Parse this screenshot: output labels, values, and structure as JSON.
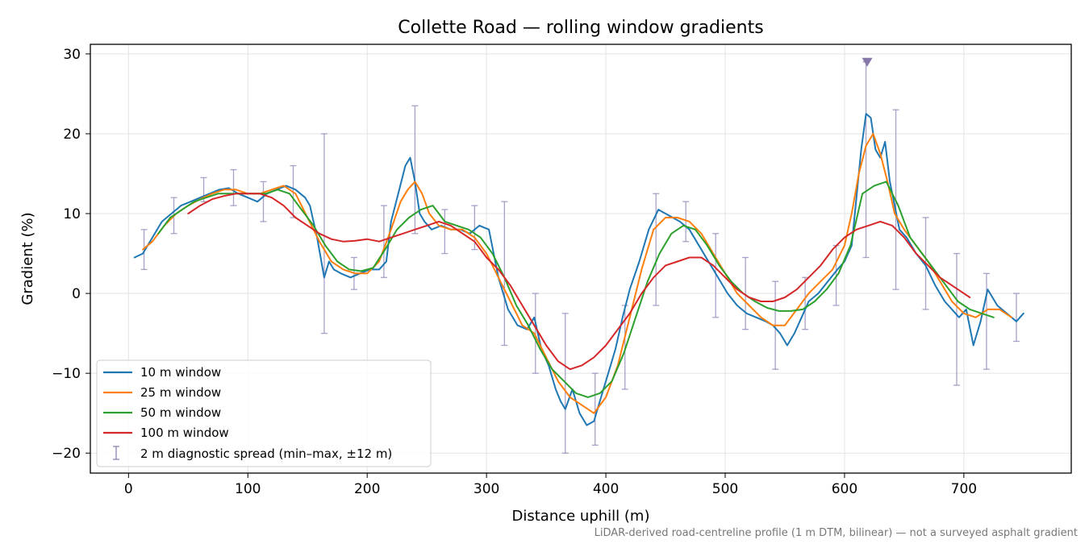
{
  "chart_data": {
    "type": "line",
    "title": "Collette Road — rolling window gradients",
    "xlabel": "Distance uphill (m)",
    "ylabel": "Gradient (%)",
    "xlim": [
      -32,
      790
    ],
    "ylim": [
      -22.5,
      31.2
    ],
    "xticks": [
      0,
      100,
      200,
      300,
      400,
      500,
      600,
      700
    ],
    "yticks": [
      -20,
      -10,
      0,
      10,
      20,
      30
    ],
    "grid": true,
    "legend_position": "lower-left",
    "footnote": "LiDAR-derived road-centreline profile (1 m DTM, bilinear) — not a surveyed asphalt gradient",
    "colors": {
      "10 m window": "#1f77b4",
      "25 m window": "#ff7f0e",
      "50 m window": "#2ca02c",
      "100 m window": "#d62728",
      "spread": "#9a90bd",
      "marker": "#8878a8"
    },
    "series": [
      {
        "name": "10 m window",
        "x": [
          5,
          12,
          20,
          28,
          36,
          44,
          52,
          60,
          68,
          76,
          84,
          92,
          100,
          108,
          116,
          124,
          132,
          140,
          148,
          152,
          158,
          164,
          168,
          172,
          178,
          186,
          194,
          202,
          210,
          216,
          220,
          226,
          232,
          236,
          240,
          244,
          248,
          254,
          262,
          270,
          278,
          286,
          294,
          302,
          310,
          318,
          326,
          334,
          340,
          346,
          352,
          358,
          362,
          366,
          372,
          378,
          384,
          390,
          396,
          402,
          408,
          414,
          420,
          428,
          436,
          444,
          450,
          456,
          462,
          470,
          478,
          486,
          494,
          502,
          510,
          518,
          526,
          534,
          540,
          546,
          552,
          558,
          564,
          570,
          578,
          586,
          594,
          600,
          606,
          610,
          614,
          618,
          622,
          626,
          630,
          634,
          638,
          642,
          646,
          652,
          660,
          668,
          676,
          684,
          690,
          696,
          702,
          708,
          714,
          720,
          728,
          736,
          744,
          750
        ],
        "y": [
          4.5,
          5.0,
          7.0,
          9.0,
          10.0,
          11.0,
          11.5,
          12.0,
          12.5,
          13.0,
          13.2,
          12.5,
          12.0,
          11.5,
          12.5,
          13.0,
          13.5,
          13.0,
          12.0,
          11.0,
          7.0,
          2.0,
          4.0,
          3.0,
          2.5,
          2.0,
          2.5,
          3.0,
          3.0,
          4.0,
          9.0,
          12.5,
          16.0,
          17.0,
          14.0,
          10.0,
          9.0,
          8.0,
          8.5,
          8.0,
          8.0,
          7.5,
          8.5,
          8.0,
          2.0,
          -2.0,
          -4.0,
          -4.5,
          -3.0,
          -7.0,
          -9.0,
          -12.0,
          -13.5,
          -14.5,
          -12.0,
          -15.0,
          -16.5,
          -16.0,
          -13.0,
          -10.0,
          -7.0,
          -3.0,
          0.5,
          4.0,
          8.0,
          10.5,
          10.0,
          9.5,
          9.0,
          8.0,
          6.0,
          4.0,
          2.0,
          0.0,
          -1.5,
          -2.5,
          -3.0,
          -3.5,
          -4.0,
          -5.0,
          -6.5,
          -5.0,
          -3.0,
          -1.0,
          0.0,
          1.5,
          3.0,
          4.0,
          6.0,
          12.0,
          18.0,
          22.5,
          22.0,
          18.0,
          17.0,
          19.0,
          14.0,
          11.0,
          8.0,
          7.0,
          5.0,
          3.5,
          1.0,
          -1.0,
          -2.0,
          -3.0,
          -2.0,
          -6.5,
          -3.5,
          0.5,
          -1.5,
          -2.5,
          -3.5,
          -2.5
        ]
      },
      {
        "name": "25 m window",
        "x": [
          12,
          20,
          30,
          40,
          50,
          60,
          70,
          80,
          90,
          100,
          110,
          120,
          130,
          140,
          150,
          160,
          170,
          180,
          190,
          200,
          210,
          220,
          228,
          234,
          240,
          246,
          252,
          260,
          270,
          280,
          290,
          300,
          310,
          320,
          330,
          340,
          350,
          360,
          370,
          380,
          390,
          400,
          410,
          420,
          430,
          440,
          450,
          460,
          470,
          480,
          490,
          500,
          510,
          520,
          530,
          540,
          550,
          560,
          570,
          580,
          590,
          600,
          606,
          612,
          618,
          624,
          630,
          636,
          642,
          650,
          660,
          670,
          680,
          690,
          700,
          710,
          720,
          730,
          740
        ],
        "y": [
          5.5,
          6.5,
          8.5,
          10.0,
          11.0,
          11.8,
          12.5,
          13.0,
          13.0,
          12.5,
          12.5,
          13.0,
          13.5,
          12.5,
          9.5,
          6.5,
          4.0,
          3.0,
          2.5,
          2.5,
          4.0,
          8.0,
          11.5,
          13.0,
          14.0,
          12.5,
          10.0,
          8.5,
          8.0,
          8.0,
          7.0,
          5.0,
          2.0,
          -1.0,
          -4.0,
          -5.0,
          -8.0,
          -11.0,
          -13.0,
          -14.0,
          -15.0,
          -13.0,
          -9.0,
          -3.0,
          3.0,
          8.0,
          9.5,
          9.5,
          9.0,
          7.5,
          5.0,
          2.5,
          0.0,
          -1.5,
          -3.0,
          -4.0,
          -4.0,
          -2.0,
          0.0,
          1.5,
          3.0,
          6.0,
          10.0,
          15.0,
          18.5,
          20.0,
          17.5,
          14.0,
          10.0,
          8.0,
          6.0,
          4.0,
          1.5,
          -1.0,
          -2.5,
          -3.0,
          -2.0,
          -2.0,
          -3.0
        ]
      },
      {
        "name": "50 m window",
        "x": [
          25,
          35,
          45,
          55,
          65,
          75,
          85,
          95,
          105,
          115,
          125,
          135,
          145,
          155,
          165,
          175,
          185,
          195,
          205,
          215,
          225,
          235,
          245,
          255,
          265,
          275,
          285,
          295,
          305,
          315,
          325,
          335,
          345,
          355,
          365,
          375,
          385,
          395,
          405,
          415,
          425,
          435,
          445,
          455,
          465,
          475,
          485,
          495,
          505,
          515,
          525,
          535,
          545,
          555,
          565,
          575,
          585,
          595,
          605,
          615,
          625,
          635,
          645,
          655,
          665,
          675,
          685,
          695,
          705,
          715,
          725
        ],
        "y": [
          7.5,
          9.5,
          10.5,
          11.5,
          12.0,
          12.5,
          12.5,
          12.5,
          12.5,
          12.5,
          13.0,
          12.5,
          10.5,
          8.5,
          6.0,
          4.0,
          3.0,
          2.8,
          3.2,
          5.5,
          8.0,
          9.5,
          10.5,
          11.0,
          9.0,
          8.5,
          8.0,
          7.0,
          5.0,
          2.0,
          -1.5,
          -4.0,
          -7.0,
          -9.5,
          -11.0,
          -12.5,
          -13.0,
          -12.5,
          -11.0,
          -7.5,
          -3.0,
          1.5,
          5.0,
          7.5,
          8.5,
          8.0,
          6.0,
          3.5,
          1.5,
          0.0,
          -1.0,
          -1.8,
          -2.2,
          -2.2,
          -2.0,
          -1.0,
          0.5,
          2.5,
          6.0,
          12.5,
          13.5,
          14.0,
          11.0,
          7.0,
          5.0,
          3.0,
          1.0,
          -1.0,
          -2.0,
          -2.5,
          -3.0
        ]
      },
      {
        "name": "100 m window",
        "x": [
          50,
          60,
          70,
          80,
          90,
          100,
          110,
          120,
          130,
          140,
          150,
          160,
          170,
          180,
          190,
          200,
          210,
          220,
          230,
          240,
          250,
          260,
          270,
          280,
          290,
          300,
          310,
          320,
          330,
          340,
          350,
          360,
          370,
          380,
          390,
          400,
          410,
          420,
          430,
          440,
          450,
          460,
          470,
          480,
          490,
          500,
          510,
          520,
          530,
          540,
          550,
          560,
          570,
          580,
          590,
          600,
          610,
          620,
          630,
          640,
          650,
          660,
          670,
          680,
          690,
          700,
          705
        ],
        "y": [
          10.0,
          11.0,
          11.8,
          12.2,
          12.5,
          12.5,
          12.5,
          12.0,
          11.0,
          9.5,
          8.5,
          7.5,
          6.8,
          6.5,
          6.6,
          6.8,
          6.5,
          7.0,
          7.5,
          8.0,
          8.5,
          9.0,
          8.5,
          7.5,
          6.5,
          4.5,
          3.0,
          1.0,
          -1.5,
          -4.0,
          -6.5,
          -8.5,
          -9.5,
          -9.0,
          -8.0,
          -6.5,
          -4.5,
          -2.5,
          0.0,
          2.0,
          3.5,
          4.0,
          4.5,
          4.5,
          3.5,
          2.0,
          0.5,
          -0.5,
          -1.0,
          -1.0,
          -0.5,
          0.5,
          2.0,
          3.5,
          5.5,
          7.0,
          8.0,
          8.5,
          9.0,
          8.5,
          7.0,
          5.0,
          3.5,
          2.0,
          1.0,
          0.0,
          -0.5
        ]
      }
    ],
    "spread": {
      "name": "2 m diagnostic spread (min–max, ±12 m)",
      "x": [
        13,
        38,
        63,
        88,
        113,
        138,
        164,
        189,
        214,
        240,
        265,
        290,
        315,
        341,
        366,
        391,
        416,
        442,
        467,
        492,
        517,
        542,
        567,
        593,
        618,
        643,
        668,
        694,
        719,
        744
      ],
      "min": [
        3,
        7.5,
        11.5,
        11,
        9,
        9.5,
        -5,
        0.5,
        2,
        7.5,
        5,
        5.5,
        -6.5,
        -10,
        -20,
        -19,
        -12,
        -1.5,
        6.5,
        -3,
        -4.5,
        -9.5,
        -4.5,
        -1.5,
        4.5,
        0.5,
        -2,
        -11.5,
        -9.5,
        -6
      ],
      "max": [
        8,
        12,
        14.5,
        15.5,
        14,
        16,
        20,
        4.5,
        11,
        23.5,
        10.5,
        11,
        11.5,
        0,
        -2.5,
        -10,
        -1.5,
        12.5,
        11.5,
        7.5,
        4.5,
        1.5,
        2,
        6,
        29,
        23,
        9.5,
        5,
        2.5,
        0
      ]
    },
    "marker": {
      "x": 619,
      "y": 29
    }
  }
}
